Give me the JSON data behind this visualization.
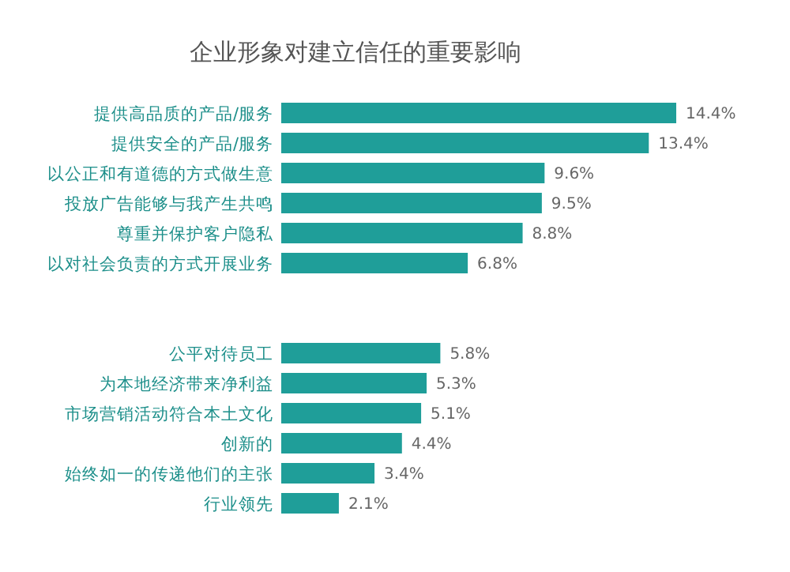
{
  "chart_data": {
    "type": "bar",
    "orientation": "horizontal",
    "title": "企业形象对建立信任的重要影响",
    "categories": [
      "提供高品质的产品/服务",
      "提供安全的产品/服务",
      "以公正和有道德的方式做生意",
      "投放广告能够与我产生共鸣",
      "尊重并保护客户隐私",
      "以对社会负责的方式开展业务",
      null,
      null,
      "公平对待员工",
      "为本地经济带来净利益",
      "市场营销活动符合本土文化",
      "创新的",
      "始终如一的传递他们的主张",
      "行业领先"
    ],
    "values": [
      14.4,
      13.4,
      9.6,
      9.5,
      8.8,
      6.8,
      null,
      null,
      5.8,
      5.3,
      5.1,
      4.4,
      3.4,
      2.1
    ],
    "value_labels": [
      "14.4%",
      "13.4%",
      "9.6%",
      "9.5%",
      "8.8%",
      "6.8%",
      null,
      null,
      "5.8%",
      "5.3%",
      "5.1%",
      "4.4%",
      "3.4%",
      "2.1%"
    ],
    "color": "#1f9e99"
  }
}
